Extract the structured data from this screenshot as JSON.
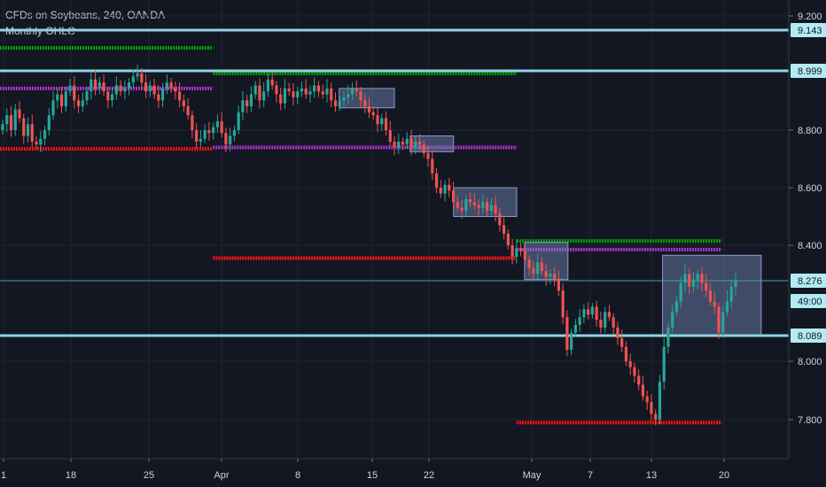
{
  "header": {
    "symbol_line": "CFDs on Soybeans, 240, OANDA",
    "indicator": "Monthly OHLC"
  },
  "chart_data": {
    "type": "candlestick",
    "y_axis": {
      "ticks": [
        "9.200",
        "8.800",
        "8.600",
        "8.400",
        "8.000",
        "7.800"
      ],
      "tick_values": [
        9.2,
        8.8,
        8.6,
        8.4,
        8.0,
        7.8
      ],
      "range": [
        7.65,
        9.23
      ]
    },
    "x_axis": {
      "ticks": [
        "1",
        "18",
        "25",
        "Apr",
        "8",
        "15",
        "22",
        "May",
        "7",
        "13",
        "20"
      ]
    },
    "price_tags": [
      {
        "label": "9.143",
        "value": 9.143,
        "bg": "#b2ebf2"
      },
      {
        "label": "8.999",
        "value": 8.999,
        "bg": "#b2ebf2"
      },
      {
        "label": "8.276",
        "value": 8.276,
        "bg": "#b2ebf2"
      },
      {
        "label": "49:00",
        "value": 8.222,
        "bg": "#b2ebf2"
      },
      {
        "label": "8.089",
        "value": 8.089,
        "bg": "#b2ebf2"
      }
    ],
    "horizontal_levels": [
      9.143,
      8.999,
      8.089
    ],
    "monthly_ohlc_levels": [
      {
        "color": "#00a000",
        "value": 9.08,
        "t_start": 0,
        "t_end": 0.27
      },
      {
        "color": "#aa33cc",
        "value": 8.94,
        "t_start": 0,
        "t_end": 0.27
      },
      {
        "color": "#ff1111",
        "value": 8.735,
        "t_start": 0,
        "t_end": 0.27
      },
      {
        "color": "#00a000",
        "value": 8.99,
        "t_start": 0.27,
        "t_end": 0.655
      },
      {
        "color": "#aa33cc",
        "value": 8.74,
        "t_start": 0.27,
        "t_end": 0.655
      },
      {
        "color": "#ff1111",
        "value": 8.355,
        "t_start": 0.27,
        "t_end": 0.655
      },
      {
        "color": "#00a000",
        "value": 8.415,
        "t_start": 0.655,
        "t_end": 0.915
      },
      {
        "color": "#aa33cc",
        "value": 8.385,
        "t_start": 0.655,
        "t_end": 0.915
      },
      {
        "color": "#ff1111",
        "value": 7.79,
        "t_start": 0.655,
        "t_end": 0.915
      }
    ],
    "boxes": [
      {
        "t0": 0.43,
        "t1": 0.5,
        "y0": 8.875,
        "y1": 8.94
      },
      {
        "t0": 0.52,
        "t1": 0.575,
        "y0": 8.725,
        "y1": 8.78
      },
      {
        "t0": 0.575,
        "t1": 0.655,
        "y0": 8.5,
        "y1": 8.6
      },
      {
        "t0": 0.665,
        "t1": 0.72,
        "y0": 8.28,
        "y1": 8.41
      },
      {
        "t0": 0.84,
        "t1": 0.965,
        "y0": 8.09,
        "y1": 8.365
      }
    ],
    "candles_close": [
      8.82,
      8.85,
      8.8,
      8.87,
      8.84,
      8.78,
      8.82,
      8.76,
      8.75,
      8.77,
      8.8,
      8.85,
      8.9,
      8.92,
      8.88,
      8.93,
      8.95,
      8.9,
      8.88,
      8.9,
      8.93,
      8.97,
      8.94,
      8.96,
      8.93,
      8.9,
      8.92,
      8.95,
      8.93,
      8.94,
      8.96,
      8.98,
      8.99,
      8.96,
      8.93,
      8.95,
      8.92,
      8.9,
      8.94,
      8.96,
      8.94,
      8.93,
      8.9,
      8.88,
      8.85,
      8.8,
      8.76,
      8.77,
      8.8,
      8.79,
      8.81,
      8.83,
      8.79,
      8.75,
      8.78,
      8.8,
      8.86,
      8.9,
      8.88,
      8.92,
      8.95,
      8.9,
      8.93,
      8.97,
      8.95,
      8.92,
      8.89,
      8.94,
      8.93,
      8.91,
      8.93,
      8.94,
      8.92,
      8.93,
      8.95,
      8.93,
      8.92,
      8.94,
      8.9,
      8.88,
      8.9,
      8.91,
      8.92,
      8.94,
      8.93,
      8.9,
      8.88,
      8.86,
      8.85,
      8.82,
      8.84,
      8.8,
      8.76,
      8.74,
      8.76,
      8.75,
      8.77,
      8.74,
      8.76,
      8.75,
      8.72,
      8.7,
      8.65,
      8.6,
      8.58,
      8.61,
      8.59,
      8.55,
      8.53,
      8.52,
      8.56,
      8.55,
      8.54,
      8.53,
      8.55,
      8.52,
      8.54,
      8.51,
      8.47,
      8.44,
      8.4,
      8.36,
      8.39,
      8.38,
      8.35,
      8.32,
      8.3,
      8.34,
      8.31,
      8.29,
      8.3,
      8.28,
      8.25,
      8.16,
      8.04,
      8.1,
      8.13,
      8.16,
      8.19,
      8.17,
      8.2,
      8.15,
      8.12,
      8.18,
      8.16,
      8.12,
      8.08,
      8.05,
      8.0,
      7.98,
      7.95,
      7.92,
      7.88,
      7.86,
      7.82,
      7.8,
      7.93,
      8.05,
      8.12,
      8.18,
      8.22,
      8.27,
      8.3,
      8.26,
      8.28,
      8.3,
      8.27,
      8.25,
      8.22,
      8.2,
      8.1,
      8.18,
      8.22,
      8.26,
      8.276
    ]
  }
}
